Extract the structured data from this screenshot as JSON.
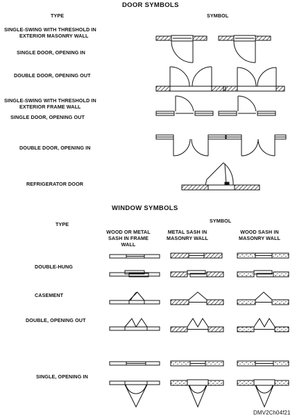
{
  "door_section": {
    "title": "DOOR SYMBOLS",
    "type_header": "TYPE",
    "symbol_header": "SYMBOL",
    "rows": [
      {
        "label_lines": [
          "SINGLE-SWING WITH THRESHOLD IN",
          "EXTERIOR MASONRY WALL"
        ]
      },
      {
        "label_lines": [
          "SINGLE DOOR, OPENING IN"
        ]
      },
      {
        "label_lines": [
          "DOUBLE DOOR, OPENING OUT"
        ]
      },
      {
        "label_lines": [
          "SINGLE-SWING WITH THRESHOLD IN",
          "EXTERIOR FRAME WALL"
        ]
      },
      {
        "label_lines": [
          "SINGLE DOOR, OPENING OUT"
        ]
      },
      {
        "label_lines": [
          "DOUBLE DOOR, OPENING IN"
        ]
      },
      {
        "label_lines": [
          "REFRIGERATOR DOOR"
        ]
      }
    ]
  },
  "window_section": {
    "title": "WINDOW SYMBOLS",
    "symbol_header": "SYMBOL",
    "type_header": "TYPE",
    "columns": [
      {
        "lines": [
          "WOOD OR METAL",
          "SASH IN FRAME",
          "WALL"
        ]
      },
      {
        "lines": [
          "METAL SASH IN",
          "MASONRY WALL"
        ]
      },
      {
        "lines": [
          "WOOD SASH IN",
          "MASONRY WALL"
        ]
      }
    ],
    "rows": [
      {
        "label": "DOUBLE-HUNG"
      },
      {
        "label": "CASEMENT"
      },
      {
        "label": "DOUBLE, OPENING OUT"
      },
      {
        "label": "SINGLE, OPENING IN"
      }
    ]
  },
  "figure_id": "DMV2Ch04f21"
}
